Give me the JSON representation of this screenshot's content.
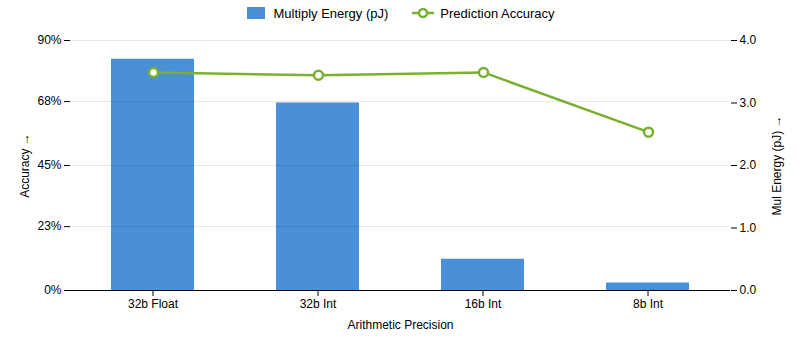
{
  "chart_data": {
    "type": "bar",
    "categories": [
      "32b Float",
      "32b Int",
      "16b Int",
      "8b Int"
    ],
    "series": [
      {
        "name": "Multiply Energy (pJ)",
        "type": "bar",
        "color": "#4a90d9",
        "axis": "y2",
        "values": [
          3.7,
          3.0,
          0.5,
          0.12
        ]
      },
      {
        "name": "Prediction Accuracy",
        "type": "line",
        "color": "#7ab030",
        "marker": "circle",
        "values": [
          0.785,
          0.775,
          0.785,
          0.57
        ]
      }
    ],
    "xlabel": "Arithmetic Precision",
    "ylabel": "Accuracy",
    "y2label": "Mul Energy (pJ)",
    "ylim": [
      0.0,
      0.9
    ],
    "yticks": [
      {
        "value": 0.0,
        "label": "0%"
      },
      {
        "value": 0.23,
        "label": "23%"
      },
      {
        "value": 0.45,
        "label": "45%"
      },
      {
        "value": 0.68,
        "label": "68%"
      },
      {
        "value": 0.9,
        "label": "90%"
      }
    ],
    "y2lim": [
      0.0,
      4.0
    ],
    "y2ticks": [
      {
        "value": 0.0,
        "label": "0.0"
      },
      {
        "value": 1.0,
        "label": "1.0"
      },
      {
        "value": 2.0,
        "label": "2.0"
      },
      {
        "value": 3.0,
        "label": "3.0"
      },
      {
        "value": 4.0,
        "label": "4.0"
      }
    ],
    "grid": true,
    "legend": "top"
  }
}
